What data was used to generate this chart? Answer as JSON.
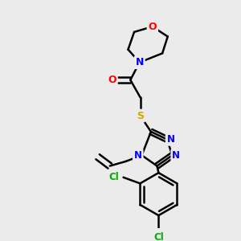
{
  "background_color": "#ebebeb",
  "bond_color": "#000000",
  "bond_width": 1.8,
  "atom_colors": {
    "O": "#ff0000",
    "N": "#0000ff",
    "S": "#ccaa00",
    "Cl": "#00aa00",
    "C": "#000000"
  },
  "font_size_atoms": 9,
  "figsize": [
    3.0,
    3.0
  ],
  "dpi": 100
}
